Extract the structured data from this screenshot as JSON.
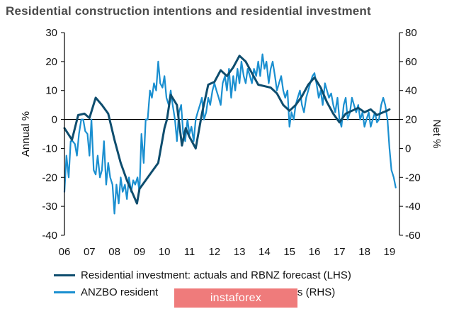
{
  "title": "Residential construction intentions and residential investment",
  "chart_data": {
    "type": "line",
    "title": "Residential construction intentions and residential investment",
    "ylabel_left": "Annual %",
    "ylabel_right": "Net %",
    "ylim_left": [
      -40,
      30
    ],
    "ylim_right": [
      -60,
      80
    ],
    "yticks_left": [
      30,
      20,
      10,
      0,
      -10,
      -20,
      -30,
      -40
    ],
    "yticks_right": [
      80,
      60,
      40,
      20,
      0,
      -20,
      -40,
      -60
    ],
    "xlim": [
      2006,
      2019.4
    ],
    "xticks": [
      {
        "x": 2006,
        "label": "06"
      },
      {
        "x": 2007,
        "label": "07"
      },
      {
        "x": 2008,
        "label": "08"
      },
      {
        "x": 2009,
        "label": "09"
      },
      {
        "x": 2010,
        "label": "10"
      },
      {
        "x": 2011,
        "label": "11"
      },
      {
        "x": 2012,
        "label": "12"
      },
      {
        "x": 2013,
        "label": "13"
      },
      {
        "x": 2014,
        "label": "14"
      },
      {
        "x": 2015,
        "label": "15"
      },
      {
        "x": 2016,
        "label": "16"
      },
      {
        "x": 2017,
        "label": "17"
      },
      {
        "x": 2018,
        "label": "18"
      },
      {
        "x": 2019,
        "label": "19"
      }
    ],
    "zero_line": true,
    "series": [
      {
        "name": "Residential investment: actuals and RBNZ forecast (LHS)",
        "axis": "left",
        "color": "#0e4d6e",
        "points": [
          [
            2006.0,
            -3
          ],
          [
            2006.3,
            -7
          ],
          [
            2006.55,
            1.5
          ],
          [
            2006.8,
            2
          ],
          [
            2007.0,
            0.5
          ],
          [
            2007.25,
            7.5
          ],
          [
            2007.5,
            5
          ],
          [
            2007.75,
            2
          ],
          [
            2008.0,
            -7
          ],
          [
            2008.25,
            -15
          ],
          [
            2008.5,
            -21
          ],
          [
            2008.75,
            -26
          ],
          [
            2008.9,
            -29
          ],
          [
            2009.0,
            -24
          ],
          [
            2009.25,
            -21
          ],
          [
            2009.5,
            -18
          ],
          [
            2009.75,
            -15
          ],
          [
            2010.0,
            -3
          ],
          [
            2010.1,
            0
          ],
          [
            2010.25,
            8.5
          ],
          [
            2010.5,
            5
          ],
          [
            2010.7,
            -9
          ],
          [
            2010.85,
            -3
          ],
          [
            2011.0,
            -6
          ],
          [
            2011.25,
            -10
          ],
          [
            2011.5,
            2
          ],
          [
            2011.75,
            12
          ],
          [
            2012.0,
            13
          ],
          [
            2012.25,
            17
          ],
          [
            2012.5,
            15
          ],
          [
            2012.75,
            18
          ],
          [
            2013.0,
            22
          ],
          [
            2013.25,
            20
          ],
          [
            2013.5,
            16
          ],
          [
            2013.75,
            12
          ],
          [
            2014.0,
            11.5
          ],
          [
            2014.25,
            11
          ],
          [
            2014.5,
            9
          ],
          [
            2014.75,
            5
          ],
          [
            2015.0,
            3
          ],
          [
            2015.25,
            5
          ],
          [
            2015.5,
            8
          ],
          [
            2015.75,
            12
          ],
          [
            2016.0,
            14.5
          ],
          [
            2016.25,
            11
          ],
          [
            2016.5,
            6
          ],
          [
            2016.75,
            2
          ],
          [
            2017.0,
            -1
          ],
          [
            2017.25,
            2
          ],
          [
            2017.5,
            3
          ],
          [
            2017.75,
            4
          ],
          [
            2018.0,
            2.5
          ],
          [
            2018.25,
            3.5
          ],
          [
            2018.5,
            1.5
          ],
          [
            2018.75,
            2.5
          ],
          [
            2018.9,
            3
          ],
          [
            2019.0,
            3.5
          ]
        ]
      },
      {
        "name": "ANZBO residential construction intentions (RHS)",
        "axis": "right",
        "color": "#1a8fd0",
        "points": [
          [
            2006.0,
            -30
          ],
          [
            2006.08,
            -5
          ],
          [
            2006.17,
            -20
          ],
          [
            2006.25,
            5
          ],
          [
            2006.33,
            5
          ],
          [
            2006.42,
            3
          ],
          [
            2006.5,
            -5
          ],
          [
            2006.58,
            10
          ],
          [
            2006.67,
            20
          ],
          [
            2006.75,
            20
          ],
          [
            2006.83,
            12
          ],
          [
            2006.92,
            10
          ],
          [
            2007.0,
            -5
          ],
          [
            2007.08,
            20
          ],
          [
            2007.17,
            -15
          ],
          [
            2007.25,
            -18
          ],
          [
            2007.33,
            -5
          ],
          [
            2007.42,
            -20
          ],
          [
            2007.5,
            -15
          ],
          [
            2007.58,
            5
          ],
          [
            2007.67,
            -25
          ],
          [
            2007.75,
            -10
          ],
          [
            2007.83,
            -20
          ],
          [
            2007.92,
            -25
          ],
          [
            2008.0,
            -45
          ],
          [
            2008.08,
            -25
          ],
          [
            2008.17,
            -38
          ],
          [
            2008.25,
            -20
          ],
          [
            2008.33,
            -30
          ],
          [
            2008.42,
            -25
          ],
          [
            2008.5,
            -35
          ],
          [
            2008.58,
            -20
          ],
          [
            2008.67,
            -30
          ],
          [
            2008.75,
            -22
          ],
          [
            2008.83,
            -25
          ],
          [
            2008.92,
            -20
          ],
          [
            2009.0,
            -30
          ],
          [
            2009.08,
            10
          ],
          [
            2009.17,
            -10
          ],
          [
            2009.25,
            20
          ],
          [
            2009.33,
            20
          ],
          [
            2009.42,
            40
          ],
          [
            2009.5,
            35
          ],
          [
            2009.58,
            45
          ],
          [
            2009.67,
            40
          ],
          [
            2009.75,
            60
          ],
          [
            2009.83,
            45
          ],
          [
            2009.92,
            42
          ],
          [
            2010.0,
            50
          ],
          [
            2010.08,
            35
          ],
          [
            2010.17,
            30
          ],
          [
            2010.25,
            40
          ],
          [
            2010.33,
            30
          ],
          [
            2010.42,
            20
          ],
          [
            2010.5,
            5
          ],
          [
            2010.58,
            25
          ],
          [
            2010.67,
            30
          ],
          [
            2010.75,
            10
          ],
          [
            2010.83,
            5
          ],
          [
            2010.92,
            20
          ],
          [
            2011.0,
            10
          ],
          [
            2011.08,
            15
          ],
          [
            2011.17,
            5
          ],
          [
            2011.25,
            20
          ],
          [
            2011.33,
            25
          ],
          [
            2011.42,
            30
          ],
          [
            2011.5,
            35
          ],
          [
            2011.58,
            20
          ],
          [
            2011.67,
            25
          ],
          [
            2011.75,
            35
          ],
          [
            2011.83,
            30
          ],
          [
            2011.92,
            40
          ],
          [
            2012.0,
            45
          ],
          [
            2012.08,
            40
          ],
          [
            2012.17,
            35
          ],
          [
            2012.25,
            30
          ],
          [
            2012.33,
            45
          ],
          [
            2012.42,
            50
          ],
          [
            2012.5,
            40
          ],
          [
            2012.58,
            55
          ],
          [
            2012.67,
            35
          ],
          [
            2012.75,
            50
          ],
          [
            2012.83,
            40
          ],
          [
            2012.92,
            55
          ],
          [
            2013.0,
            45
          ],
          [
            2013.08,
            60
          ],
          [
            2013.17,
            50
          ],
          [
            2013.25,
            45
          ],
          [
            2013.33,
            55
          ],
          [
            2013.42,
            50
          ],
          [
            2013.5,
            45
          ],
          [
            2013.58,
            55
          ],
          [
            2013.67,
            50
          ],
          [
            2013.75,
            60
          ],
          [
            2013.83,
            50
          ],
          [
            2013.92,
            65
          ],
          [
            2014.0,
            55
          ],
          [
            2014.08,
            60
          ],
          [
            2014.17,
            45
          ],
          [
            2014.25,
            55
          ],
          [
            2014.33,
            60
          ],
          [
            2014.42,
            50
          ],
          [
            2014.5,
            40
          ],
          [
            2014.58,
            45
          ],
          [
            2014.67,
            50
          ],
          [
            2014.75,
            40
          ],
          [
            2014.83,
            35
          ],
          [
            2014.92,
            40
          ],
          [
            2015.0,
            15
          ],
          [
            2015.08,
            25
          ],
          [
            2015.17,
            20
          ],
          [
            2015.25,
            30
          ],
          [
            2015.33,
            35
          ],
          [
            2015.42,
            40
          ],
          [
            2015.5,
            30
          ],
          [
            2015.58,
            25
          ],
          [
            2015.67,
            35
          ],
          [
            2015.75,
            40
          ],
          [
            2015.83,
            45
          ],
          [
            2015.92,
            50
          ],
          [
            2016.0,
            52
          ],
          [
            2016.08,
            45
          ],
          [
            2016.17,
            35
          ],
          [
            2016.25,
            40
          ],
          [
            2016.33,
            30
          ],
          [
            2016.42,
            45
          ],
          [
            2016.5,
            40
          ],
          [
            2016.58,
            35
          ],
          [
            2016.67,
            38
          ],
          [
            2016.75,
            30
          ],
          [
            2016.83,
            25
          ],
          [
            2016.92,
            35
          ],
          [
            2017.0,
            20
          ],
          [
            2017.08,
            15
          ],
          [
            2017.17,
            30
          ],
          [
            2017.25,
            35
          ],
          [
            2017.33,
            20
          ],
          [
            2017.42,
            25
          ],
          [
            2017.5,
            35
          ],
          [
            2017.58,
            30
          ],
          [
            2017.67,
            25
          ],
          [
            2017.75,
            30
          ],
          [
            2017.83,
            20
          ],
          [
            2017.92,
            25
          ],
          [
            2018.0,
            15
          ],
          [
            2018.08,
            20
          ],
          [
            2018.17,
            25
          ],
          [
            2018.25,
            15
          ],
          [
            2018.33,
            20
          ],
          [
            2018.42,
            25
          ],
          [
            2018.5,
            18
          ],
          [
            2018.58,
            20
          ],
          [
            2018.67,
            30
          ],
          [
            2018.75,
            35
          ],
          [
            2018.83,
            30
          ],
          [
            2018.92,
            20
          ],
          [
            2019.0,
            0
          ],
          [
            2019.08,
            -15
          ],
          [
            2019.17,
            -20
          ],
          [
            2019.25,
            -27
          ]
        ]
      }
    ]
  },
  "legend": [
    {
      "label": "Residential investment: actuals and RBNZ forecast (LHS)",
      "color": "#0e4d6e"
    },
    {
      "label": "ANZBO resident",
      "suffix": "ons (RHS)",
      "color": "#1a8fd0"
    }
  ],
  "watermark": "instaforex"
}
